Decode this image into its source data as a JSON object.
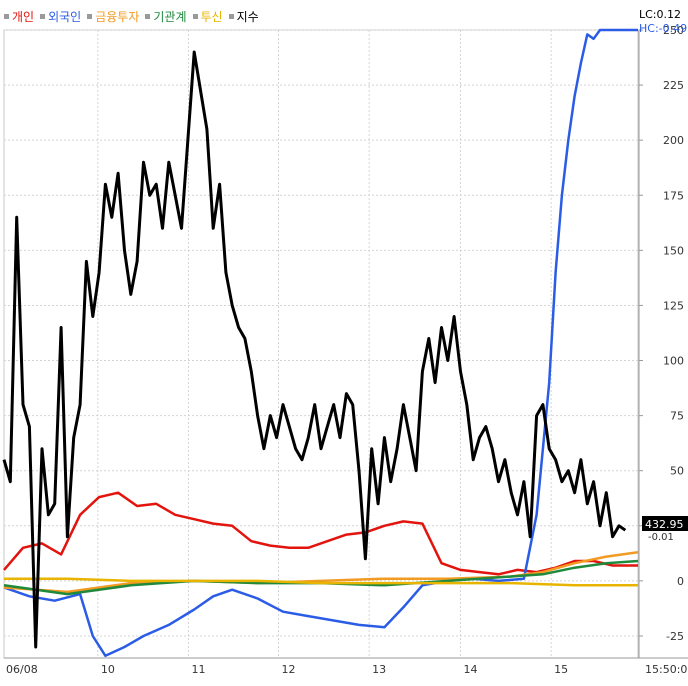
{
  "legend": [
    {
      "label": "개인",
      "color": "#e3140e"
    },
    {
      "label": "외국인",
      "color": "#2b5ce6"
    },
    {
      "label": "금융투자",
      "color": "#f29b22"
    },
    {
      "label": "기관계",
      "color": "#1f8a3c"
    },
    {
      "label": "투신",
      "color": "#e8b400"
    },
    {
      "label": "지수",
      "color": "#000000"
    }
  ],
  "readouts": {
    "lc": "LC:0.12",
    "hc": "HC:-0.49",
    "last_value": "432.95",
    "last_value_small": "-0.01"
  },
  "chart_data": {
    "type": "line",
    "x_ticks": [
      "06/08",
      "10",
      "11",
      "12",
      "13",
      "14",
      "15"
    ],
    "x_end_label": "15:50:0",
    "ylim": [
      -35,
      250
    ],
    "y_ticks": [
      -25,
      0,
      25,
      50,
      75,
      100,
      125,
      150,
      175,
      200,
      225,
      250
    ],
    "grid": true,
    "legend_position": "top-left",
    "series": [
      {
        "name": "개인",
        "color": "#e3140e",
        "x": [
          0,
          0.03,
          0.06,
          0.09,
          0.12,
          0.15,
          0.18,
          0.21,
          0.24,
          0.27,
          0.3,
          0.33,
          0.36,
          0.39,
          0.42,
          0.45,
          0.48,
          0.51,
          0.54,
          0.57,
          0.6,
          0.63,
          0.66,
          0.69,
          0.72,
          0.75,
          0.78,
          0.81,
          0.84,
          0.87,
          0.9,
          0.93,
          0.96,
          1.0
        ],
        "y": [
          5,
          15,
          17,
          12,
          30,
          38,
          40,
          34,
          35,
          30,
          28,
          26,
          25,
          18,
          16,
          15,
          15,
          18,
          21,
          22,
          25,
          27,
          26,
          8,
          5,
          4,
          3,
          5,
          4,
          6,
          9,
          9,
          7,
          7
        ]
      },
      {
        "name": "외국인",
        "color": "#2b5ce6",
        "x": [
          0,
          0.04,
          0.08,
          0.12,
          0.14,
          0.16,
          0.19,
          0.22,
          0.26,
          0.3,
          0.33,
          0.36,
          0.4,
          0.44,
          0.48,
          0.52,
          0.56,
          0.6,
          0.63,
          0.66,
          0.7,
          0.74,
          0.78,
          0.82,
          0.84,
          0.86,
          0.87,
          0.88,
          0.89,
          0.9,
          0.91,
          0.92,
          0.93,
          0.94,
          1.0
        ],
        "y": [
          -3,
          -7,
          -9,
          -6,
          -25,
          -34,
          -30,
          -25,
          -20,
          -13,
          -7,
          -4,
          -8,
          -14,
          -16,
          -18,
          -20,
          -21,
          -12,
          -2,
          0,
          1,
          0,
          1,
          30,
          90,
          140,
          175,
          200,
          220,
          235,
          248,
          246,
          250,
          250
        ]
      },
      {
        "name": "금융투자",
        "color": "#f29b22",
        "x": [
          0,
          0.1,
          0.2,
          0.3,
          0.4,
          0.5,
          0.6,
          0.7,
          0.8,
          0.85,
          0.9,
          0.95,
          1.0
        ],
        "y": [
          -3,
          -5,
          -1,
          0,
          -1,
          0,
          1,
          1,
          2,
          4,
          8,
          11,
          13
        ]
      },
      {
        "name": "기관계",
        "color": "#1f8a3c",
        "x": [
          0,
          0.1,
          0.2,
          0.3,
          0.4,
          0.5,
          0.6,
          0.7,
          0.8,
          0.85,
          0.9,
          0.95,
          1.0
        ],
        "y": [
          -2,
          -6,
          -2,
          0,
          -1,
          -1,
          -2,
          0,
          2,
          3,
          6,
          8,
          9
        ]
      },
      {
        "name": "투신",
        "color": "#e8b400",
        "x": [
          0,
          0.1,
          0.2,
          0.3,
          0.4,
          0.5,
          0.6,
          0.7,
          0.8,
          0.9,
          1.0
        ],
        "y": [
          1,
          1,
          0,
          0,
          0,
          -1,
          -1,
          -1,
          -1,
          -2,
          -2
        ]
      },
      {
        "name": "지수",
        "color": "#000000",
        "x": [
          0,
          0.01,
          0.02,
          0.03,
          0.04,
          0.05,
          0.06,
          0.07,
          0.08,
          0.09,
          0.1,
          0.11,
          0.12,
          0.13,
          0.14,
          0.15,
          0.16,
          0.17,
          0.18,
          0.19,
          0.2,
          0.21,
          0.22,
          0.23,
          0.24,
          0.25,
          0.26,
          0.27,
          0.28,
          0.3,
          0.32,
          0.33,
          0.34,
          0.35,
          0.36,
          0.37,
          0.38,
          0.39,
          0.4,
          0.41,
          0.42,
          0.43,
          0.44,
          0.45,
          0.46,
          0.47,
          0.48,
          0.49,
          0.5,
          0.51,
          0.52,
          0.53,
          0.54,
          0.55,
          0.56,
          0.57,
          0.58,
          0.59,
          0.6,
          0.61,
          0.62,
          0.63,
          0.64,
          0.65,
          0.66,
          0.67,
          0.68,
          0.69,
          0.7,
          0.71,
          0.72,
          0.73,
          0.74,
          0.75,
          0.76,
          0.77,
          0.78,
          0.79,
          0.8,
          0.81,
          0.82,
          0.83,
          0.84,
          0.85,
          0.86,
          0.87,
          0.88,
          0.89,
          0.9,
          0.91,
          0.92,
          0.93,
          0.94,
          0.95,
          0.96,
          0.97,
          0.98
        ],
        "y": [
          55,
          45,
          165,
          80,
          70,
          -30,
          60,
          30,
          35,
          115,
          20,
          65,
          80,
          145,
          120,
          140,
          180,
          165,
          185,
          150,
          130,
          145,
          190,
          175,
          180,
          160,
          190,
          175,
          160,
          240,
          205,
          160,
          180,
          140,
          125,
          115,
          110,
          95,
          75,
          60,
          75,
          65,
          80,
          70,
          60,
          55,
          65,
          80,
          60,
          70,
          80,
          65,
          85,
          80,
          50,
          10,
          60,
          35,
          65,
          45,
          60,
          80,
          65,
          50,
          95,
          110,
          90,
          115,
          100,
          120,
          95,
          80,
          55,
          65,
          70,
          60,
          45,
          55,
          40,
          30,
          45,
          20,
          75,
          80,
          60,
          55,
          45,
          50,
          40,
          55,
          35,
          45,
          25,
          40,
          20,
          25,
          23
        ]
      }
    ]
  }
}
